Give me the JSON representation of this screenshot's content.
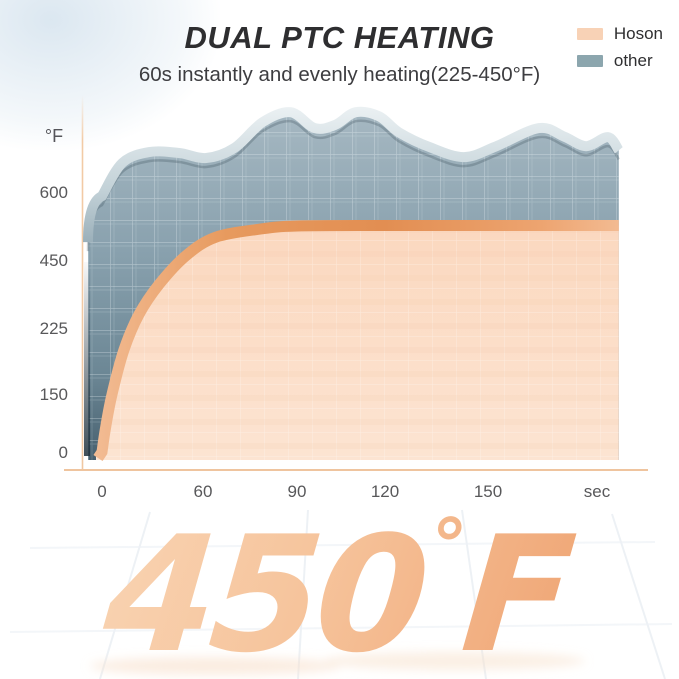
{
  "header": {
    "title": "DUAL PTC HEATING",
    "subtitle": "60s instantly and evenly heating(225-450°F)"
  },
  "legend": {
    "items": [
      {
        "label": "Hoson",
        "color": "#f8d2b6"
      },
      {
        "label": "other",
        "color": "#8ca6ae"
      }
    ]
  },
  "chart_data": {
    "type": "area",
    "title": "DUAL PTC HEATING",
    "subtitle": "60s instantly and evenly heating(225-450°F)",
    "xlabel": "sec",
    "ylabel": "°F",
    "x_ticks": [
      0,
      60,
      90,
      120,
      150
    ],
    "y_ticks": [
      0,
      150,
      225,
      450,
      600
    ],
    "x_axis_note": "non-linear spacing: 60s first interval, then 30s steps toward 'sec'",
    "legend_position": "top-right",
    "grid": true,
    "series": [
      {
        "name": "Hoson",
        "fill": "#fbdcc4",
        "edge": "#e8975c",
        "points": [
          [
            0,
            0
          ],
          [
            2,
            60
          ],
          [
            6,
            150
          ],
          [
            13,
            200
          ],
          [
            22,
            270
          ],
          [
            34,
            370
          ],
          [
            50,
            460
          ],
          [
            64,
            500
          ],
          [
            78,
            518
          ],
          [
            90,
            525
          ],
          [
            120,
            526
          ],
          [
            150,
            526
          ],
          [
            170,
            526
          ],
          [
            186,
            526
          ]
        ]
      },
      {
        "name": "other",
        "fill": "#87a0ad",
        "edge": "#dce6e9",
        "points": [
          [
            0,
            591
          ],
          [
            12,
            664
          ],
          [
            28,
            688
          ],
          [
            46,
            686
          ],
          [
            61,
            675
          ],
          [
            70,
            697
          ],
          [
            79,
            754
          ],
          [
            88,
            776
          ],
          [
            96,
            741
          ],
          [
            103,
            748
          ],
          [
            110,
            776
          ],
          [
            118,
            767
          ],
          [
            124,
            732
          ],
          [
            133,
            699
          ],
          [
            143,
            677
          ],
          [
            152,
            700
          ],
          [
            164,
            741
          ],
          [
            171,
            722
          ],
          [
            177,
            701
          ],
          [
            183,
            721
          ],
          [
            186,
            692
          ]
        ]
      }
    ]
  },
  "big_label": {
    "value": "450",
    "degree": "°",
    "unit": "F"
  },
  "colors": {
    "text_dark": "#2e2e30",
    "text_gray": "#58585a",
    "axis": "#f0c7a1",
    "hoson_band": "#e79a5e",
    "other_rim": "#dce6e9"
  }
}
